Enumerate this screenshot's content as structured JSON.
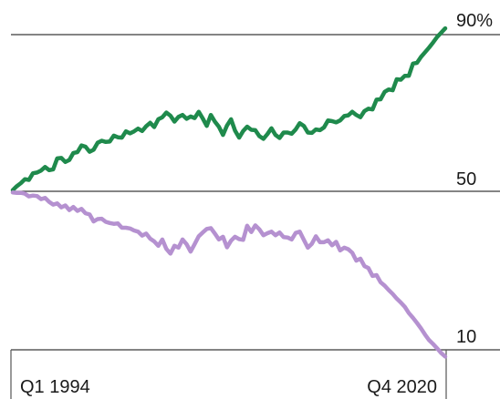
{
  "chart_data": {
    "type": "line",
    "x_range": [
      "Q1 1994",
      "Q4 2020"
    ],
    "x_tick_labels": [
      "Q1 1994",
      "Q4 2020"
    ],
    "y_range": [
      10,
      90
    ],
    "y_tick_labels": [
      "90%",
      "50",
      "10"
    ],
    "grid": "horizontal lines at 90 and 50; baseline at 10",
    "legend": "none",
    "series": [
      {
        "color": "#1f8a4c",
        "values": [
          50.3,
          51.3,
          52.1,
          53.1,
          52.9,
          54.6,
          54.8,
          55.3,
          56.2,
          55.4,
          55.6,
          58.4,
          58.5,
          57.5,
          58.0,
          59.8,
          60.0,
          61.7,
          61.4,
          60.1,
          60.6,
          62.4,
          62.9,
          62.6,
          62.7,
          64.2,
          63.8,
          63.7,
          65.3,
          64.8,
          65.3,
          66.0,
          65.4,
          66.6,
          67.5,
          66.4,
          68.4,
          68.9,
          70.1,
          69.3,
          67.8,
          69.0,
          69.5,
          68.5,
          69.1,
          68.7,
          70.3,
          68.6,
          66.7,
          69.5,
          67.8,
          66.5,
          64.4,
          66.8,
          68.4,
          65.5,
          63.7,
          65.4,
          66.5,
          65.7,
          65.6,
          64.1,
          63.4,
          64.6,
          66.1,
          64.4,
          63.6,
          65.0,
          65.0,
          64.7,
          65.8,
          67.4,
          66.7,
          65.0,
          64.9,
          65.8,
          65.6,
          66.3,
          68.1,
          67.9,
          67.6,
          68.1,
          69.2,
          69.4,
          70.3,
          69.5,
          68.9,
          70.5,
          71.1,
          70.9,
          73.4,
          73.5,
          75.4,
          76.0,
          75.8,
          78.6,
          78.5,
          79.5,
          79.5,
          82.6,
          82.8,
          84.3,
          85.5,
          86.7,
          88.0,
          89.4,
          90.5,
          91.6
        ]
      },
      {
        "color": "#b591d0",
        "values": [
          49.7,
          49.6,
          49.6,
          49.4,
          48.7,
          48.9,
          48.8,
          48.0,
          48.3,
          47.3,
          46.6,
          46.9,
          45.9,
          46.4,
          45.2,
          46.0,
          45.0,
          45.5,
          44.4,
          44.1,
          42.3,
          42.9,
          43.0,
          42.2,
          41.9,
          41.7,
          41.8,
          40.7,
          40.7,
          40.5,
          40.0,
          39.7,
          38.7,
          39.2,
          37.9,
          37.2,
          36.1,
          37.7,
          35.3,
          34.1,
          36.1,
          35.6,
          37.7,
          36.5,
          34.6,
          36.5,
          38.5,
          39.5,
          40.4,
          40.6,
          39.2,
          37.7,
          38.4,
          35.7,
          37.4,
          38.4,
          37.8,
          37.6,
          41.2,
          39.6,
          41.3,
          40.3,
          38.8,
          39.3,
          39.7,
          38.8,
          39.5,
          38.3,
          38.2,
          37.7,
          39.4,
          39.7,
          37.6,
          35.6,
          36.6,
          38.5,
          37.0,
          37.0,
          37.5,
          36.2,
          37.1,
          34.9,
          35.6,
          35.2,
          34.3,
          32.3,
          32.8,
          30.9,
          30.4,
          28.4,
          28.6,
          26.8,
          25.9,
          24.8,
          23.8,
          22.6,
          21.6,
          20.5,
          18.9,
          17.7,
          16.4,
          15.0,
          13.4,
          12.0,
          11.0,
          9.9,
          8.7,
          7.8
        ]
      }
    ]
  }
}
